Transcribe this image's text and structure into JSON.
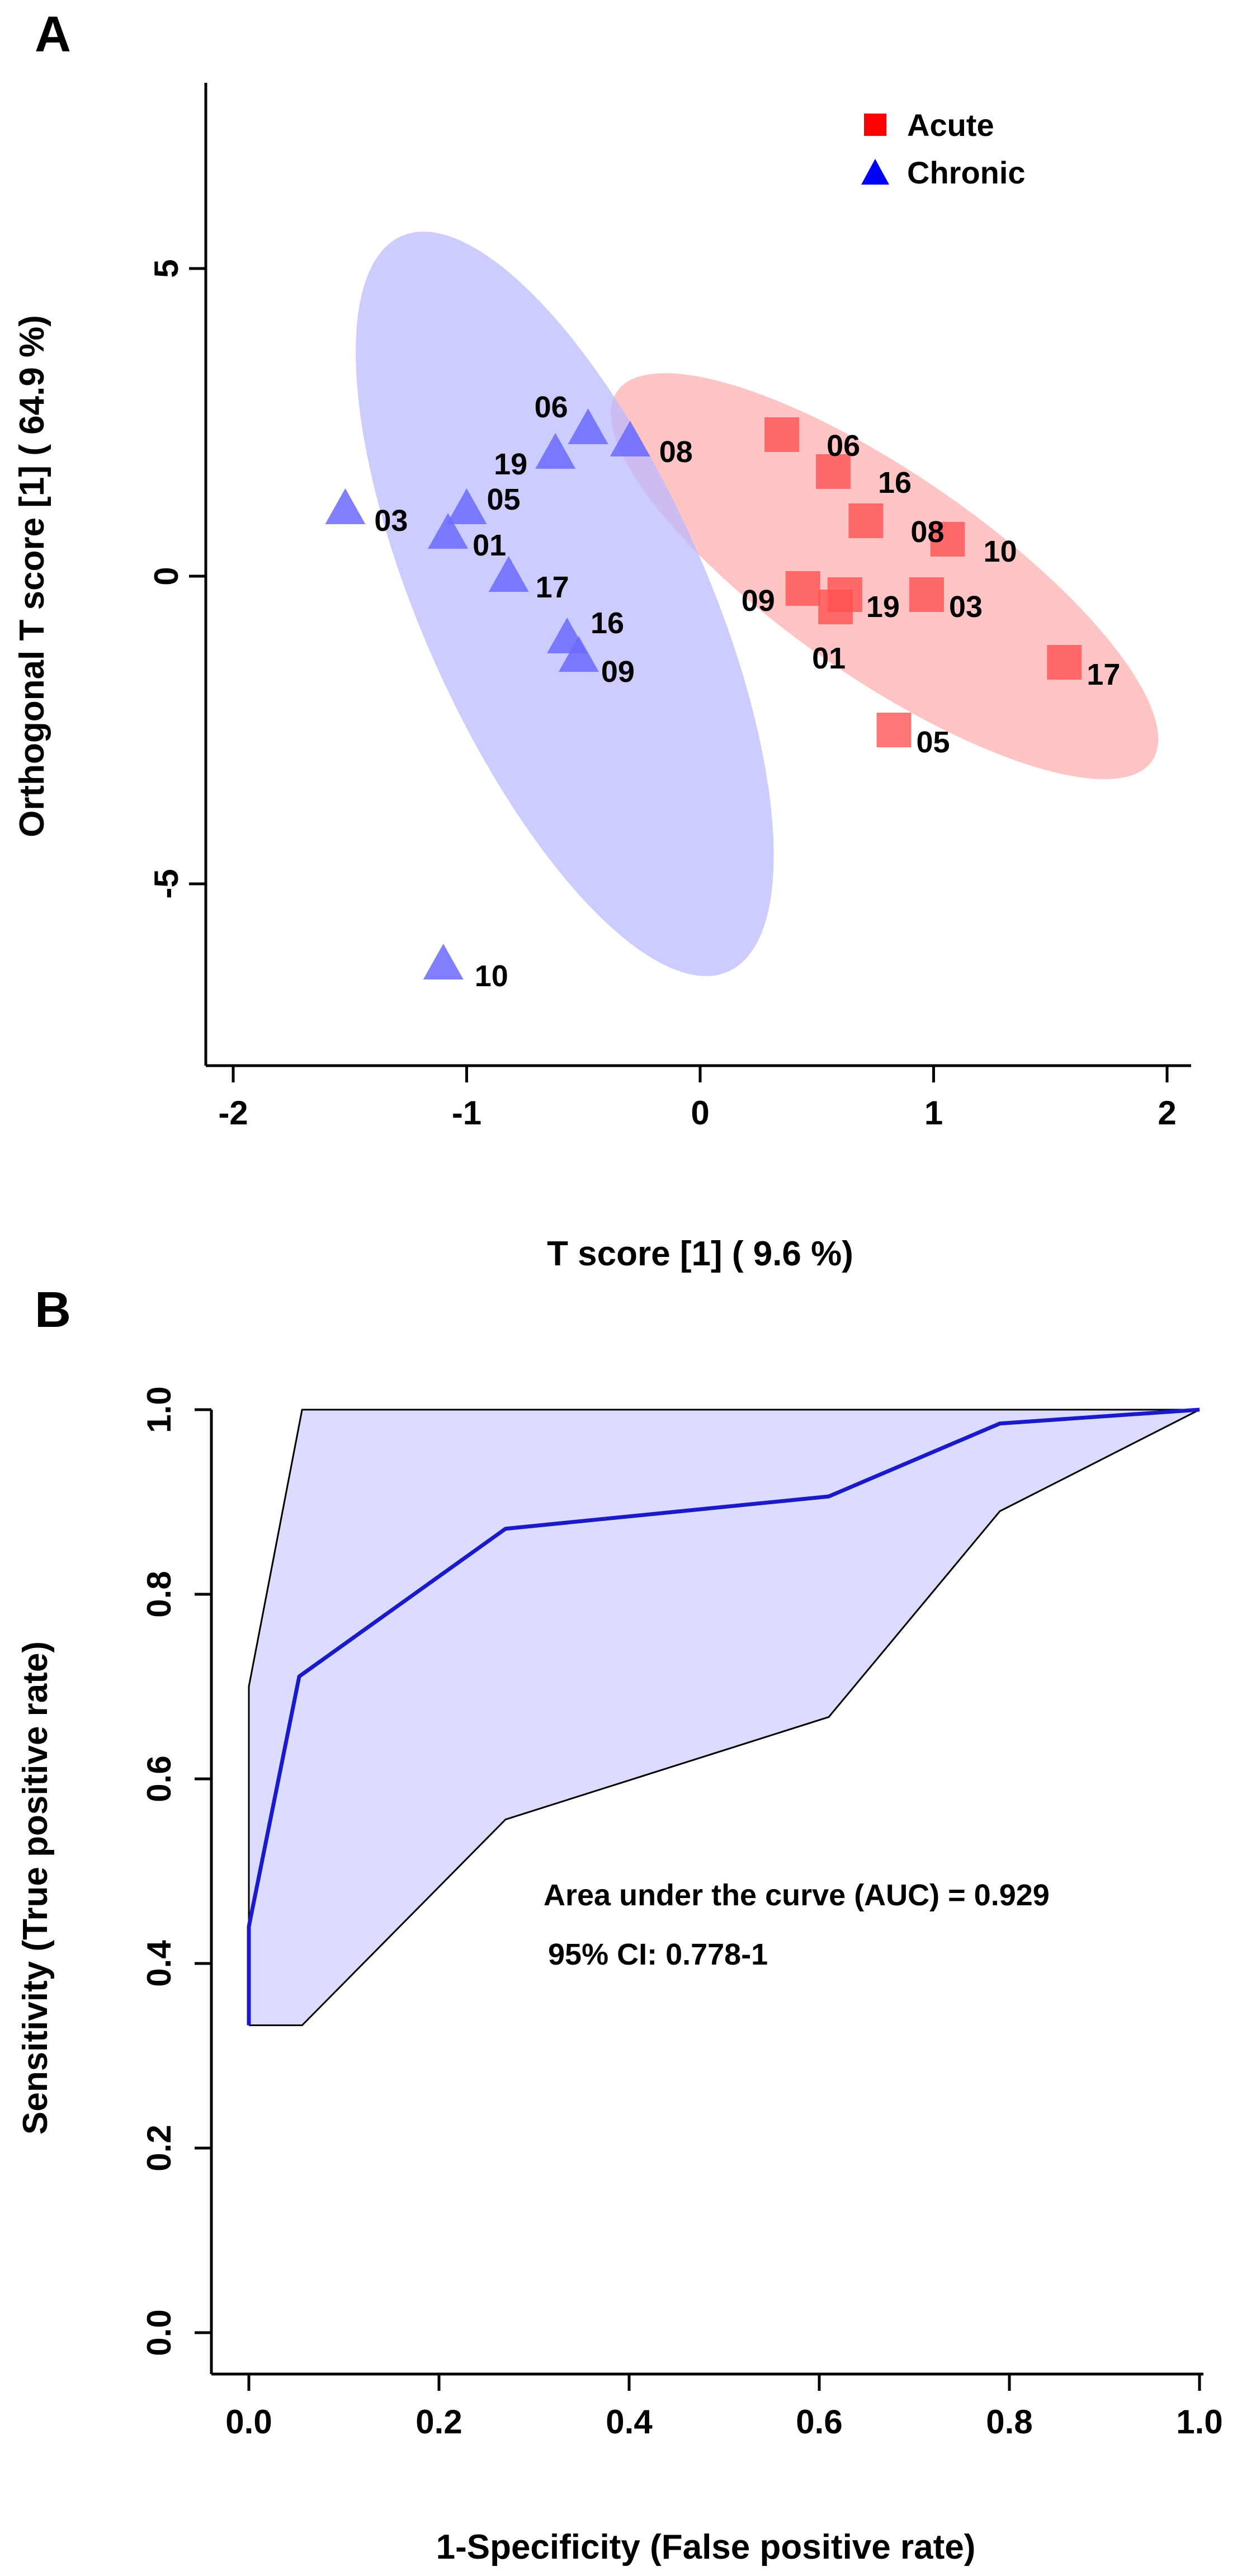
{
  "chart_data": [
    {
      "type": "scatter",
      "panel_label": "A",
      "xlabel": "T score [1] ( 9.6 %)",
      "ylabel": "Orthogonal T score [1] ( 64.9 %)",
      "xlim": [
        -2.1,
        2.1
      ],
      "ylim": [
        -8,
        8
      ],
      "xticks": [
        -2,
        -1,
        0,
        1,
        2
      ],
      "yticks": [
        -5,
        0,
        5
      ],
      "grid": false,
      "legend": {
        "placement": "top-right"
      },
      "series": [
        {
          "name": "Acute",
          "marker": "square",
          "color": "#ff5050",
          "ellipse": {
            "cx": 0.79,
            "cy": 0.0,
            "rx": 0.7,
            "ry": 3.3,
            "tilt": -0.285,
            "color": "#ffb5b5"
          },
          "points": [
            {
              "label": "06",
              "x": 0.35,
              "y": 2.3
            },
            {
              "label": "16",
              "x": 0.57,
              "y": 1.7
            },
            {
              "label": "08",
              "x": 0.71,
              "y": 0.9
            },
            {
              "label": "10",
              "x": 1.06,
              "y": 0.6
            },
            {
              "label": "09",
              "x": 0.44,
              "y": -0.2
            },
            {
              "label": "19",
              "x": 0.62,
              "y": -0.3
            },
            {
              "label": "03",
              "x": 0.97,
              "y": -0.3
            },
            {
              "label": "01",
              "x": 0.58,
              "y": -0.5
            },
            {
              "label": "17",
              "x": 1.56,
              "y": -1.4
            },
            {
              "label": "05",
              "x": 0.83,
              "y": -2.5
            }
          ]
        },
        {
          "name": "Chronic",
          "marker": "triangle",
          "color": "#6a6aff",
          "ellipse": {
            "cx": -0.58,
            "cy": -0.45,
            "rx": 0.66,
            "ry": 6.05,
            "tilt": -0.1,
            "color": "#b8b8ff"
          },
          "points": [
            {
              "label": "06",
              "x": -0.48,
              "y": 2.4
            },
            {
              "label": "19",
              "x": -0.62,
              "y": 2.0
            },
            {
              "label": "08",
              "x": -0.3,
              "y": 2.2
            },
            {
              "label": "03",
              "x": -1.52,
              "y": 1.1
            },
            {
              "label": "05",
              "x": -1.0,
              "y": 1.1
            },
            {
              "label": "01",
              "x": -1.08,
              "y": 0.7
            },
            {
              "label": "17",
              "x": -0.82,
              "y": 0.0
            },
            {
              "label": "16",
              "x": -0.57,
              "y": -1.0
            },
            {
              "label": "09",
              "x": -0.52,
              "y": -1.3
            },
            {
              "label": "10",
              "x": -1.1,
              "y": -6.3
            }
          ]
        }
      ]
    },
    {
      "type": "line",
      "panel_label": "B",
      "xlabel": "1-Specificity (False positive rate)",
      "ylabel": "Sensitivity (True positive rate)",
      "xlim": [
        0,
        1
      ],
      "ylim": [
        0,
        1
      ],
      "xticks": [
        "0.0",
        "0.2",
        "0.4",
        "0.6",
        "0.8",
        "1.0"
      ],
      "yticks": [
        "0.0",
        "0.2",
        "0.4",
        "0.6",
        "0.8",
        "1.0"
      ],
      "grid": false,
      "series": [
        {
          "role": "roc-curve",
          "color": "#1a1acc",
          "points": [
            [
              0,
              0.333
            ],
            [
              0,
              0.44
            ],
            [
              0.053,
              0.711
            ],
            [
              0.27,
              0.871
            ],
            [
              0.61,
              0.906
            ],
            [
              0.79,
              0.985
            ],
            [
              1,
              1
            ]
          ]
        },
        {
          "role": "ci-upper",
          "color": "#000000",
          "points": [
            [
              0,
              0.333
            ],
            [
              0,
              0.7
            ],
            [
              0.056,
              1.0
            ],
            [
              1,
              1
            ]
          ]
        },
        {
          "role": "ci-lower",
          "color": "#000000",
          "points": [
            [
              0,
              0.333
            ],
            [
              0.056,
              0.333
            ],
            [
              0.27,
              0.556
            ],
            [
              0.61,
              0.667
            ],
            [
              0.79,
              0.89
            ],
            [
              1,
              1
            ]
          ]
        }
      ],
      "band_color": "#dcdcff",
      "annotations": [
        "Area under the curve (AUC) = 0.929",
        "95% CI: 0.778-1"
      ]
    }
  ]
}
